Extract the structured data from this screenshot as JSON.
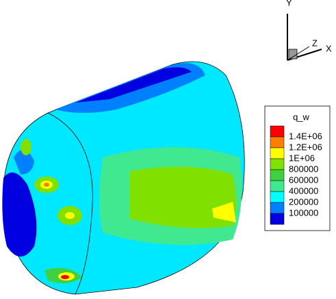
{
  "legend": {
    "title": "q_w",
    "labels": [
      "1.4E+06",
      "1.2E+06",
      "1E+06",
      "800000",
      "600000",
      "400000",
      "200000",
      "100000"
    ],
    "colors": [
      "#ff0000",
      "#ff8000",
      "#ffff00",
      "#80e000",
      "#40d040",
      "#40e890",
      "#00ffff",
      "#0080ff",
      "#0000e0"
    ]
  },
  "axes": {
    "y": "Y",
    "z": "Z",
    "x": "X"
  }
}
